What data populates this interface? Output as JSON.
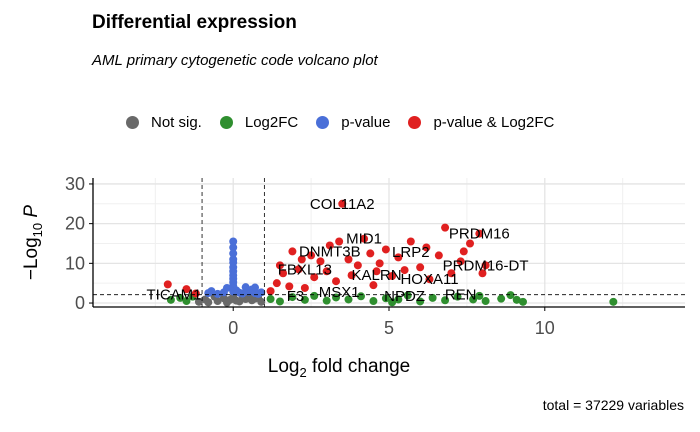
{
  "chart_data": {
    "type": "scatter",
    "title": "Differential expression",
    "subtitle": "AML primary cytogenetic code volcano plot",
    "xlabel": "Log2 fold change",
    "ylabel": "−Log10 P",
    "caption": "total = 37229 variables",
    "xlim": [
      -4.5,
      14.5
    ],
    "ylim": [
      -1,
      31.5
    ],
    "x_ticks": [
      0,
      5,
      10
    ],
    "y_ticks": [
      0,
      10,
      20,
      30
    ],
    "grid": true,
    "legend_position": "top",
    "log2fc_cutoff": 1,
    "pvalue_cutoff_neglog10": 2.1,
    "series": [
      {
        "name": "Not sig.",
        "color": "#696969",
        "points": [
          [
            -1.1,
            0.3
          ],
          [
            -0.8,
            0.2
          ],
          [
            -0.5,
            0.5
          ],
          [
            -0.3,
            1.2
          ],
          [
            -0.1,
            0.8
          ],
          [
            0.0,
            1.5
          ],
          [
            0.2,
            0.4
          ],
          [
            0.4,
            1.0
          ],
          [
            0.6,
            0.7
          ],
          [
            0.8,
            1.4
          ],
          [
            0.9,
            0.3
          ],
          [
            -0.6,
            1.6
          ],
          [
            0.3,
            1.9
          ],
          [
            0.7,
            1.1
          ],
          [
            -0.2,
            0.1
          ],
          [
            0.5,
            1.7
          ],
          [
            -0.9,
            0.9
          ],
          [
            0.1,
            0.6
          ]
        ]
      },
      {
        "name": "Log2FC",
        "color": "#2f8f2f",
        "points": [
          [
            -2.0,
            0.8
          ],
          [
            -1.7,
            1.3
          ],
          [
            -1.5,
            0.5
          ],
          [
            -1.3,
            1.6
          ],
          [
            1.2,
            1.0
          ],
          [
            1.5,
            0.4
          ],
          [
            1.9,
            1.5
          ],
          [
            2.3,
            0.8
          ],
          [
            2.6,
            1.8
          ],
          [
            3.0,
            0.6
          ],
          [
            3.3,
            1.4
          ],
          [
            3.7,
            0.9
          ],
          [
            4.1,
            1.7
          ],
          [
            4.5,
            0.5
          ],
          [
            4.9,
            1.2
          ],
          [
            5.3,
            0.9
          ],
          [
            5.6,
            1.9
          ],
          [
            6.0,
            0.4
          ],
          [
            6.4,
            1.3
          ],
          [
            6.8,
            0.7
          ],
          [
            7.2,
            1.6
          ],
          [
            7.7,
            0.9
          ],
          [
            8.1,
            0.5
          ],
          [
            8.6,
            1.1
          ],
          [
            8.9,
            2.0
          ],
          [
            9.1,
            0.8
          ],
          [
            9.3,
            0.3
          ],
          [
            12.2,
            0.3
          ],
          [
            7.9,
            1.8
          ],
          [
            5.1,
            0.2
          ]
        ]
      },
      {
        "name": "p-value",
        "color": "#4a6fd8",
        "points": [
          [
            0.0,
            15.5
          ],
          [
            0.0,
            14.0
          ],
          [
            0.0,
            12.5
          ],
          [
            0.0,
            11.0
          ],
          [
            0.0,
            10.2
          ],
          [
            0.0,
            9.0
          ],
          [
            0.0,
            8.0
          ],
          [
            0.0,
            7.0
          ],
          [
            0.0,
            6.1
          ],
          [
            0.0,
            5.2
          ],
          [
            0.0,
            4.3
          ],
          [
            0.0,
            3.6
          ],
          [
            0.0,
            2.9
          ],
          [
            0.1,
            3.2
          ],
          [
            0.2,
            2.6
          ],
          [
            0.3,
            2.4
          ],
          [
            0.5,
            2.8
          ],
          [
            0.6,
            3.4
          ],
          [
            0.7,
            2.5
          ],
          [
            0.8,
            2.3
          ],
          [
            -0.3,
            2.7
          ],
          [
            -0.5,
            2.3
          ],
          [
            -0.7,
            3.0
          ],
          [
            -0.8,
            2.5
          ],
          [
            0.4,
            4.0
          ],
          [
            -0.2,
            3.8
          ],
          [
            0.9,
            2.7
          ],
          [
            0.7,
            3.9
          ]
        ]
      },
      {
        "name": "p-value & Log2FC",
        "color": "#e02020",
        "points": [
          [
            -2.1,
            4.7
          ],
          [
            -1.5,
            3.5
          ],
          [
            -1.2,
            2.4
          ],
          [
            1.2,
            3.0
          ],
          [
            1.4,
            5.0
          ],
          [
            1.6,
            7.5
          ],
          [
            1.8,
            4.2
          ],
          [
            1.9,
            13.0
          ],
          [
            2.1,
            8.5
          ],
          [
            2.3,
            3.8
          ],
          [
            2.5,
            12.0
          ],
          [
            2.6,
            6.5
          ],
          [
            2.8,
            10.5
          ],
          [
            3.0,
            8.0
          ],
          [
            3.1,
            14.5
          ],
          [
            3.3,
            5.5
          ],
          [
            3.5,
            25.0
          ],
          [
            3.7,
            11.0
          ],
          [
            3.8,
            7.0
          ],
          [
            4.0,
            9.5
          ],
          [
            4.2,
            16.2
          ],
          [
            4.4,
            12.5
          ],
          [
            4.5,
            4.5
          ],
          [
            4.7,
            10.0
          ],
          [
            4.9,
            13.5
          ],
          [
            5.1,
            6.8
          ],
          [
            5.3,
            11.5
          ],
          [
            5.5,
            8.3
          ],
          [
            5.7,
            15.5
          ],
          [
            6.0,
            9.0
          ],
          [
            6.2,
            14.0
          ],
          [
            6.3,
            6.0
          ],
          [
            6.6,
            12.0
          ],
          [
            6.8,
            19.0
          ],
          [
            7.0,
            7.5
          ],
          [
            7.3,
            10.5
          ],
          [
            7.4,
            13.0
          ],
          [
            7.6,
            15.0
          ],
          [
            7.9,
            17.5
          ],
          [
            8.0,
            7.5
          ],
          [
            8.1,
            9.5
          ],
          [
            1.5,
            9.5
          ],
          [
            2.2,
            11.0
          ],
          [
            3.4,
            15.5
          ],
          [
            4.6,
            8.0
          ]
        ]
      }
    ],
    "annotations": [
      {
        "label": "COL11A2",
        "x": 3.5,
        "y": 25.0
      },
      {
        "label": "PRDM16",
        "x": 7.9,
        "y": 17.5
      },
      {
        "label": "MID1",
        "x": 4.2,
        "y": 16.2
      },
      {
        "label": "LRP2",
        "x": 5.7,
        "y": 12.8
      },
      {
        "label": "DNMT3B",
        "x": 3.1,
        "y": 13.0
      },
      {
        "label": "PRDM16-DT",
        "x": 8.1,
        "y": 9.5
      },
      {
        "label": "FBXL13",
        "x": 2.3,
        "y": 8.5
      },
      {
        "label": "KALRN",
        "x": 4.6,
        "y": 7.0
      },
      {
        "label": "HOXA11",
        "x": 6.3,
        "y": 6.0
      },
      {
        "label": "MSX1",
        "x": 3.4,
        "y": 2.8
      },
      {
        "label": "TICAM1",
        "x": -1.9,
        "y": 2.2
      },
      {
        "label": "F3",
        "x": 2.0,
        "y": 1.8
      },
      {
        "label": "NPDZ",
        "x": 5.5,
        "y": 1.8
      },
      {
        "label": "REN",
        "x": 7.3,
        "y": 2.2
      }
    ]
  }
}
